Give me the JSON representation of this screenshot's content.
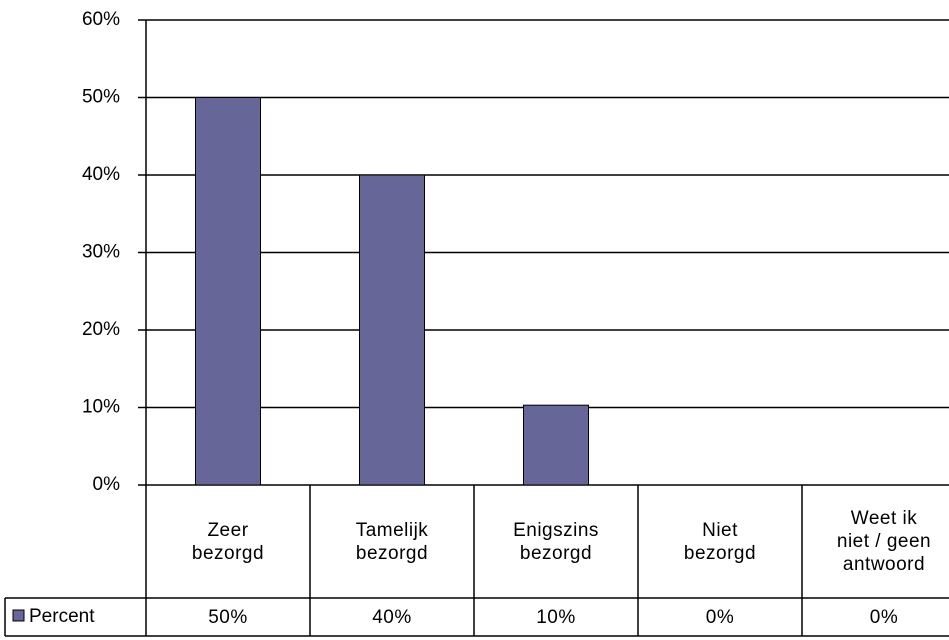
{
  "chart_data": {
    "type": "bar",
    "categories": [
      "Zeer\nbezorgd",
      "Tamelijk\nbezorgd",
      "Enigszins\nbezorgd",
      "Niet\nbezorgd",
      "Weet ik\nniet / geen\nantwoord"
    ],
    "series": [
      {
        "name": "Percent",
        "color": "#666699",
        "values": [
          50,
          40,
          10.3,
          0,
          0
        ],
        "value_labels": [
          "50%",
          "40%",
          "10%",
          "0%",
          "0%"
        ]
      }
    ],
    "ylim": [
      0,
      60
    ],
    "yticks": [
      {
        "value": 0,
        "label": "0%"
      },
      {
        "value": 10,
        "label": "10%"
      },
      {
        "value": 20,
        "label": "20%"
      },
      {
        "value": 30,
        "label": "30%"
      },
      {
        "value": 40,
        "label": "40%"
      },
      {
        "value": 50,
        "label": "50%"
      },
      {
        "value": 60,
        "label": "60%"
      }
    ],
    "grid": true,
    "legend": "data-table"
  }
}
